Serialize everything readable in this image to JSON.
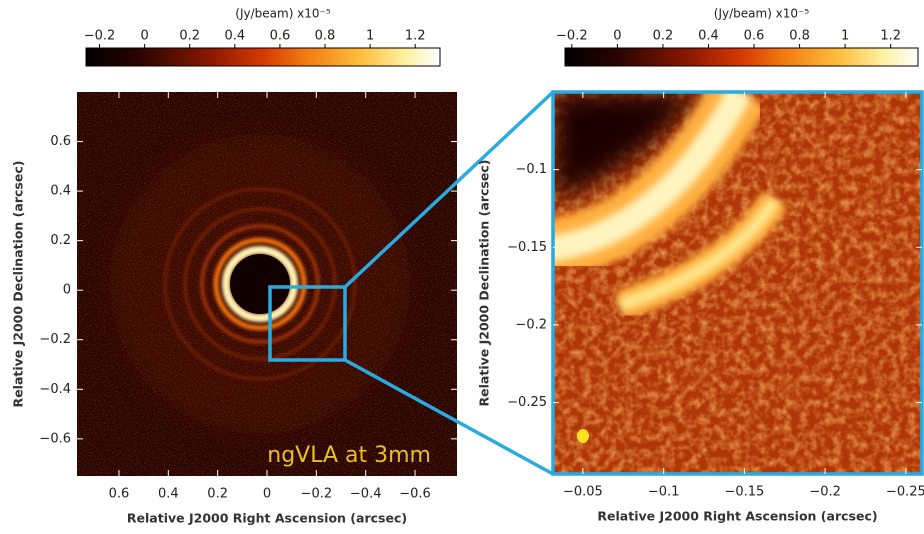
{
  "chart_data": [
    {
      "type": "image",
      "xlabel": "Relative J2000 Right Ascension (arcsec)",
      "ylabel": "Relative J2000 Declination (arcsec)",
      "xlim": [
        0.77,
        -0.77
      ],
      "ylim": [
        -0.75,
        0.8
      ],
      "xticks": [
        0.6,
        0.4,
        0.2,
        0,
        {
          "value": -0.2,
          "label": "−0.2"
        },
        {
          "value": -0.4,
          "label": "−0.4"
        },
        {
          "value": -0.6,
          "label": "−0.6"
        }
      ],
      "yticks": [
        {
          "value": -0.6,
          "label": "−0.6"
        },
        {
          "value": -0.4,
          "label": "−0.4"
        },
        {
          "value": -0.2,
          "label": "−0.2"
        },
        0,
        0.2,
        0.4,
        0.6
      ],
      "annotation": "ngVLA at 3mm",
      "colorbar": {
        "label": "(Jy/beam)  x10⁻⁵",
        "lim": [
          -0.26,
          1.31
        ],
        "ticks": [
          {
            "value": -0.2,
            "label": "−0.2"
          },
          0,
          0.2,
          0.4,
          0.6,
          0.8,
          1,
          1.2
        ]
      }
    },
    {
      "type": "image",
      "xlabel": "Relative J2000 Right Ascension (arcsec)",
      "ylabel": "Relative J2000 Declination (arcsec)",
      "xlim": [
        -0.0315,
        -0.26
      ],
      "ylim": [
        -0.296,
        -0.05
      ],
      "xticks": [
        {
          "value": -0.05,
          "label": "−0.05"
        },
        {
          "value": -0.1,
          "label": "−0.1"
        },
        {
          "value": -0.15,
          "label": "−0.15"
        },
        {
          "value": -0.2,
          "label": "−0.2"
        },
        {
          "value": -0.25,
          "label": "−0.25"
        }
      ],
      "yticks": [
        {
          "value": -0.25,
          "label": "−0.25"
        },
        {
          "value": -0.2,
          "label": "−0.2"
        },
        {
          "value": -0.15,
          "label": "−0.15"
        },
        {
          "value": -0.1,
          "label": "−0.1"
        }
      ],
      "colorbar": {
        "label": "(Jy/beam)  x10⁻⁵",
        "lim": [
          -0.23,
          1.32
        ],
        "ticks": [
          {
            "value": -0.2,
            "label": "−0.2"
          },
          0,
          0.2,
          0.4,
          0.6,
          0.8,
          1,
          1.2
        ]
      }
    }
  ]
}
